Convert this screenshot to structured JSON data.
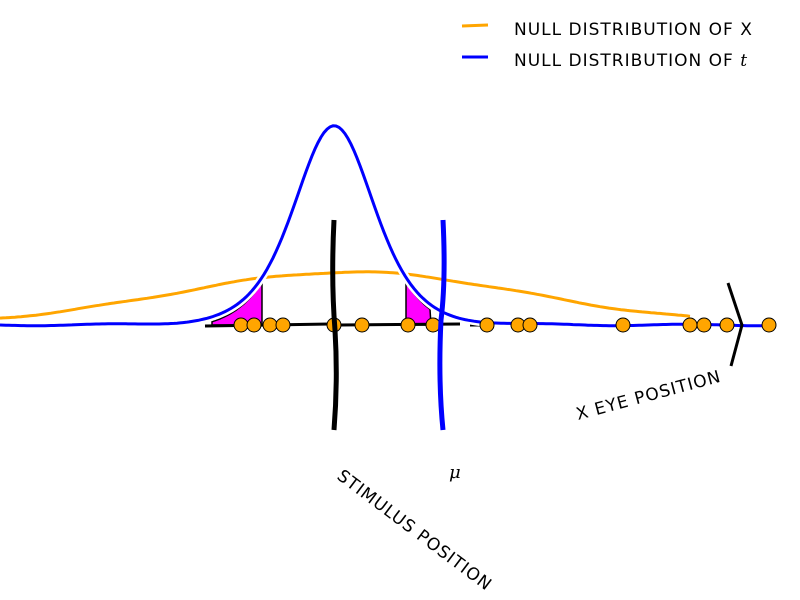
{
  "legend": {
    "items": [
      {
        "label": "null distribution of ",
        "var": "x",
        "color": "#FFA500"
      },
      {
        "label": "null distribution of ",
        "var": "t",
        "color": "#0000FF"
      }
    ]
  },
  "labels": {
    "stimulus": "stimulus position",
    "mu": "μ",
    "eye": "x eye position"
  },
  "colors": {
    "null_x": "#FFA500",
    "null_t": "#0000FF",
    "rejection_region": "#FF00FF",
    "samples": "#FFA500",
    "axis": "#000000"
  },
  "samples": [
    -93,
    -80,
    -64,
    -51,
    0,
    28,
    74,
    99,
    153,
    184,
    196,
    289,
    356,
    370,
    393,
    435
  ]
}
